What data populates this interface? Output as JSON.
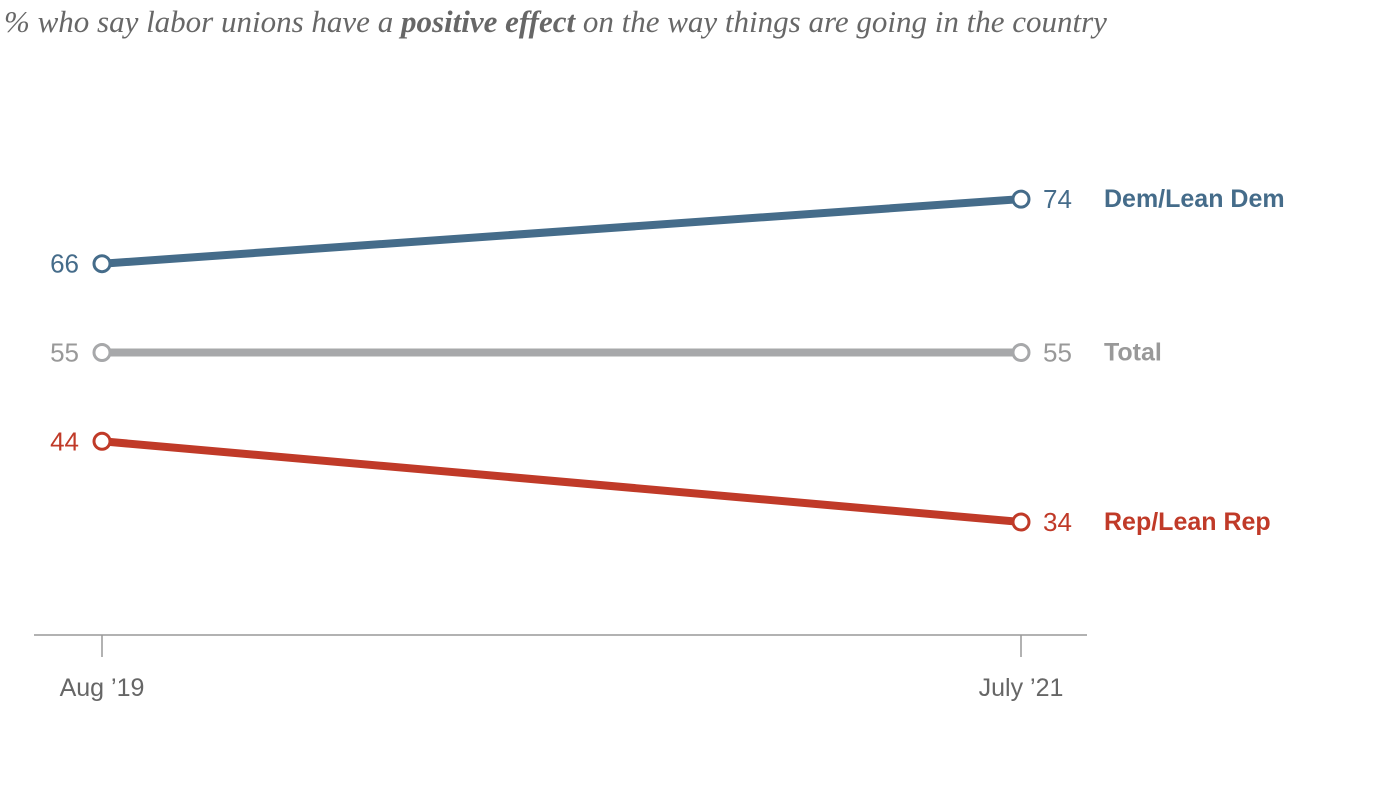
{
  "subtitle": {
    "prefix": "% who say labor unions have a ",
    "emphasis": "positive effect",
    "suffix": " on the way things are going in the country"
  },
  "chart_data": {
    "type": "line",
    "title": "% who say labor unions have a positive effect on the way things are going in the country",
    "categories": [
      "Aug ’19",
      "July ’21"
    ],
    "ylim": [
      20,
      90
    ],
    "grid": false,
    "xlabel": "",
    "ylabel": "",
    "series": [
      {
        "name": "Dem/Lean Dem",
        "color": "#456c8a",
        "values": [
          66,
          74
        ]
      },
      {
        "name": "Total",
        "color": "#a7a8aa",
        "label_color": "#999999",
        "values": [
          55,
          55
        ]
      },
      {
        "name": "Rep/Lean Rep",
        "color": "#c03a28",
        "values": [
          44,
          34
        ]
      }
    ]
  }
}
